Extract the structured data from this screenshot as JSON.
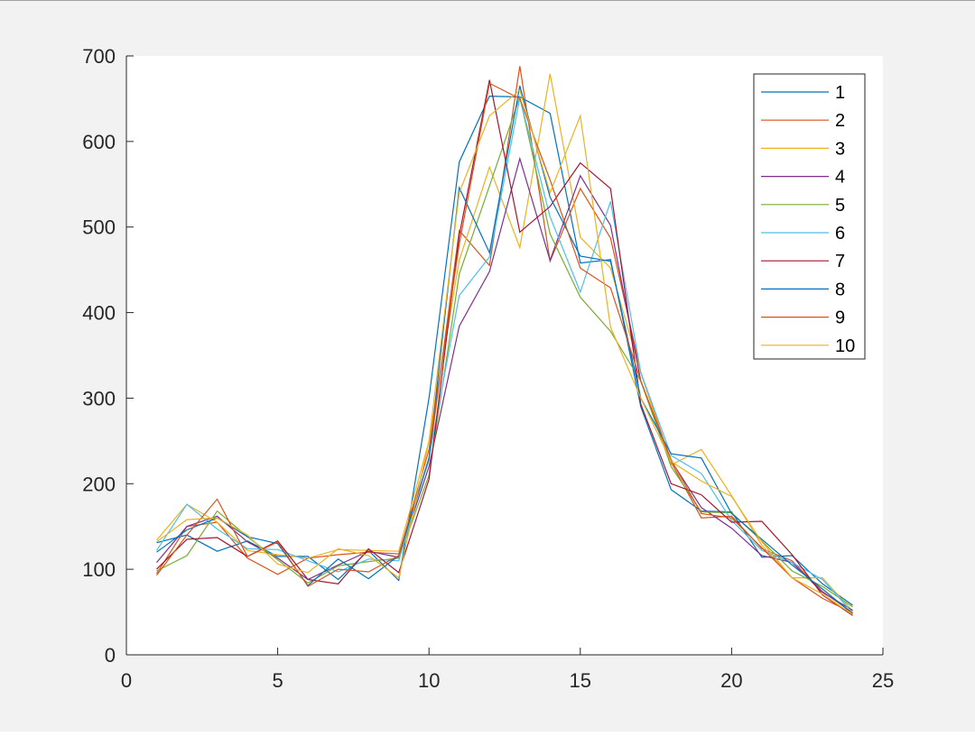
{
  "chart_data": {
    "type": "line",
    "title": "",
    "xlabel": "",
    "ylabel": "",
    "xlim": [
      0,
      25
    ],
    "ylim": [
      0,
      700
    ],
    "xticks": [
      0,
      5,
      10,
      15,
      20,
      25
    ],
    "yticks": [
      0,
      100,
      200,
      300,
      400,
      500,
      600,
      700
    ],
    "grid": false,
    "legend_position": "top-right",
    "x": [
      1,
      2,
      3,
      4,
      5,
      6,
      7,
      8,
      9,
      10,
      11,
      12,
      13,
      14,
      15,
      16,
      17,
      18,
      19,
      20,
      21,
      22,
      23,
      24
    ],
    "series": [
      {
        "name": "1",
        "color": "#0072BD",
        "values": [
          131,
          140,
          121,
          133,
          115,
          115,
          88,
          122,
          87,
          300,
          576,
          653,
          652,
          633,
          458,
          462,
          290,
          193,
          168,
          167,
          114,
          116,
          83,
          58
        ]
      },
      {
        "name": "2",
        "color": "#D95319",
        "values": [
          95,
          150,
          155,
          113,
          94,
          113,
          117,
          120,
          118,
          228,
          496,
          455,
          688,
          460,
          545,
          487,
          330,
          225,
          160,
          162,
          124,
          110,
          74,
          49
        ]
      },
      {
        "name": "3",
        "color": "#EDB120",
        "values": [
          134,
          176,
          155,
          122,
          117,
          113,
          123,
          122,
          121,
          250,
          461,
          570,
          476,
          679,
          488,
          452,
          330,
          222,
          240,
          186,
          128,
          90,
          90,
          51
        ]
      },
      {
        "name": "4",
        "color": "#7E2F8E",
        "values": [
          108,
          150,
          162,
          132,
          113,
          88,
          105,
          121,
          114,
          220,
          384,
          448,
          580,
          461,
          560,
          502,
          320,
          227,
          172,
          148,
          116,
          108,
          73,
          52
        ]
      },
      {
        "name": "5",
        "color": "#77AC30",
        "values": [
          98,
          116,
          168,
          138,
          111,
          84,
          104,
          109,
          113,
          210,
          445,
          548,
          652,
          492,
          418,
          378,
          320,
          220,
          167,
          166,
          133,
          98,
          80,
          56
        ]
      },
      {
        "name": "6",
        "color": "#4DBEEE",
        "values": [
          122,
          176,
          147,
          124,
          123,
          110,
          97,
          112,
          110,
          230,
          420,
          465,
          651,
          512,
          424,
          530,
          330,
          233,
          212,
          157,
          122,
          108,
          88,
          49
        ]
      },
      {
        "name": "7",
        "color": "#A2142F",
        "values": [
          100,
          135,
          137,
          115,
          133,
          88,
          83,
          124,
          96,
          205,
          490,
          672,
          494,
          524,
          575,
          545,
          293,
          200,
          187,
          155,
          156,
          117,
          70,
          46
        ]
      },
      {
        "name": "8",
        "color": "#0072BD",
        "values": [
          120,
          146,
          160,
          138,
          130,
          81,
          112,
          89,
          116,
          230,
          546,
          470,
          665,
          535,
          466,
          460,
          300,
          235,
          230,
          165,
          135,
          105,
          77,
          48
        ]
      },
      {
        "name": "9",
        "color": "#D95319",
        "values": [
          93,
          140,
          182,
          115,
          132,
          80,
          100,
          97,
          116,
          240,
          480,
          668,
          650,
          555,
          452,
          429,
          320,
          228,
          165,
          160,
          125,
          90,
          66,
          49
        ]
      },
      {
        "name": "10",
        "color": "#EDB120",
        "values": [
          132,
          158,
          160,
          140,
          106,
          96,
          124,
          116,
          90,
          250,
          540,
          630,
          660,
          540,
          630,
          383,
          300,
          226,
          203,
          185,
          132,
          90,
          71,
          47
        ]
      }
    ]
  }
}
